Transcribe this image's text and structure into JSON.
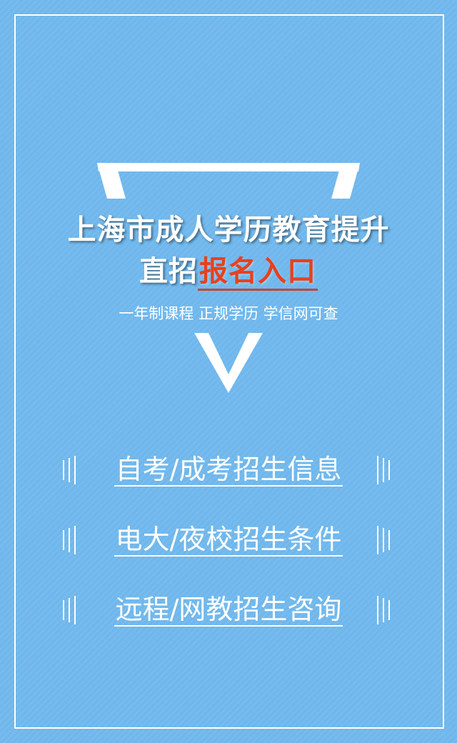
{
  "title": {
    "line1": "上海市成人学历教育提升",
    "line2_prefix": "直招",
    "line2_accent": "报名入口"
  },
  "subtitle": "一年制课程 正规学历 学信网可查",
  "menu": [
    {
      "label": "自考/成考招生信息"
    },
    {
      "label": "电大/夜校招生条件"
    },
    {
      "label": "远程/网教招生咨询"
    }
  ],
  "colors": {
    "background": "#6fb7ec",
    "frame": "#ffffff",
    "accent": "#e8401c",
    "text": "#ffffff"
  }
}
